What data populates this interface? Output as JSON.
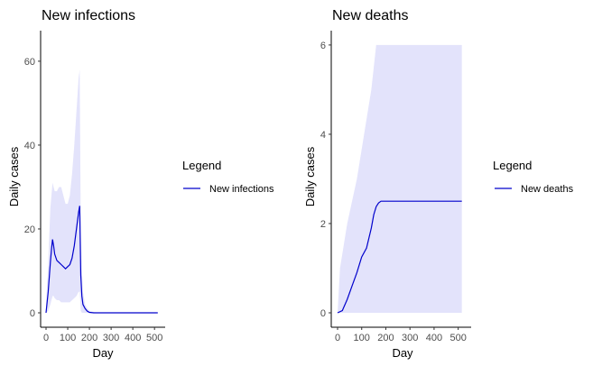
{
  "chart_data": [
    {
      "type": "line",
      "title": "New infections",
      "xlabel": "Day",
      "ylabel": "Daily cases",
      "xlim": [
        0,
        520
      ],
      "ylim": [
        0,
        66
      ],
      "xticks": [
        0,
        100,
        200,
        300,
        400,
        500
      ],
      "yticks": [
        0,
        20,
        40,
        60
      ],
      "grid": false,
      "legend": {
        "title": "Legend",
        "placement": "right"
      },
      "colors": {
        "line": "#0000cc",
        "band": "#e3e3fb"
      },
      "series": [
        {
          "name": "New infections",
          "x": [
            0,
            10,
            20,
            25,
            30,
            35,
            40,
            50,
            60,
            70,
            80,
            90,
            100,
            110,
            120,
            130,
            140,
            150,
            155,
            160,
            165,
            170,
            180,
            190,
            200,
            220,
            250,
            300,
            400,
            500,
            515
          ],
          "y": [
            0,
            5,
            12,
            15,
            17.5,
            16,
            14,
            12.5,
            12,
            11.5,
            11,
            10.5,
            11,
            11.5,
            13,
            16,
            20,
            24,
            25.5,
            9,
            4,
            2,
            1,
            0.4,
            0.1,
            0,
            0,
            0,
            0,
            0,
            0
          ]
        }
      ],
      "band": {
        "x": [
          0,
          10,
          20,
          25,
          30,
          35,
          40,
          50,
          60,
          70,
          80,
          90,
          100,
          110,
          120,
          130,
          140,
          150,
          155,
          160,
          165,
          170,
          180,
          190,
          200,
          220,
          250,
          300,
          400,
          500,
          515
        ],
        "lower": [
          0,
          0.5,
          2,
          3,
          4,
          4,
          3.5,
          3,
          3,
          2.5,
          2.5,
          2.5,
          2.5,
          2.5,
          3,
          3.5,
          4,
          5,
          5,
          0.5,
          0,
          0,
          0,
          0,
          0,
          0,
          0,
          0,
          0,
          0,
          0
        ],
        "upper": [
          2,
          12,
          25,
          28,
          31,
          30,
          29,
          29,
          30,
          30,
          28,
          26,
          26,
          28,
          33,
          40,
          48,
          56,
          58,
          20,
          10,
          5,
          2,
          1,
          0.5,
          0.2,
          0,
          0,
          0,
          0,
          0
        ]
      }
    },
    {
      "type": "line",
      "title": "New deaths",
      "xlabel": "Day",
      "ylabel": "Daily cases",
      "xlim": [
        0,
        520
      ],
      "ylim": [
        0,
        6.2
      ],
      "xticks": [
        0,
        100,
        200,
        300,
        400,
        500
      ],
      "yticks": [
        0,
        2,
        4,
        6
      ],
      "grid": false,
      "legend": {
        "title": "Legend",
        "placement": "right"
      },
      "colors": {
        "line": "#0000cc",
        "band": "#e3e3fb"
      },
      "series": [
        {
          "name": "New deaths",
          "x": [
            0,
            20,
            40,
            60,
            80,
            100,
            120,
            140,
            150,
            160,
            170,
            180,
            200,
            300,
            400,
            515
          ],
          "y": [
            0,
            0.05,
            0.3,
            0.6,
            0.9,
            1.25,
            1.45,
            1.9,
            2.2,
            2.38,
            2.46,
            2.5,
            2.5,
            2.5,
            2.5,
            2.5
          ]
        }
      ],
      "band": {
        "x": [
          0,
          10,
          40,
          80,
          110,
          140,
          160,
          515
        ],
        "lower": [
          0,
          0,
          0,
          0,
          0,
          0,
          0,
          0
        ],
        "upper": [
          0,
          1,
          2,
          3,
          4,
          5,
          6,
          6
        ]
      }
    }
  ]
}
